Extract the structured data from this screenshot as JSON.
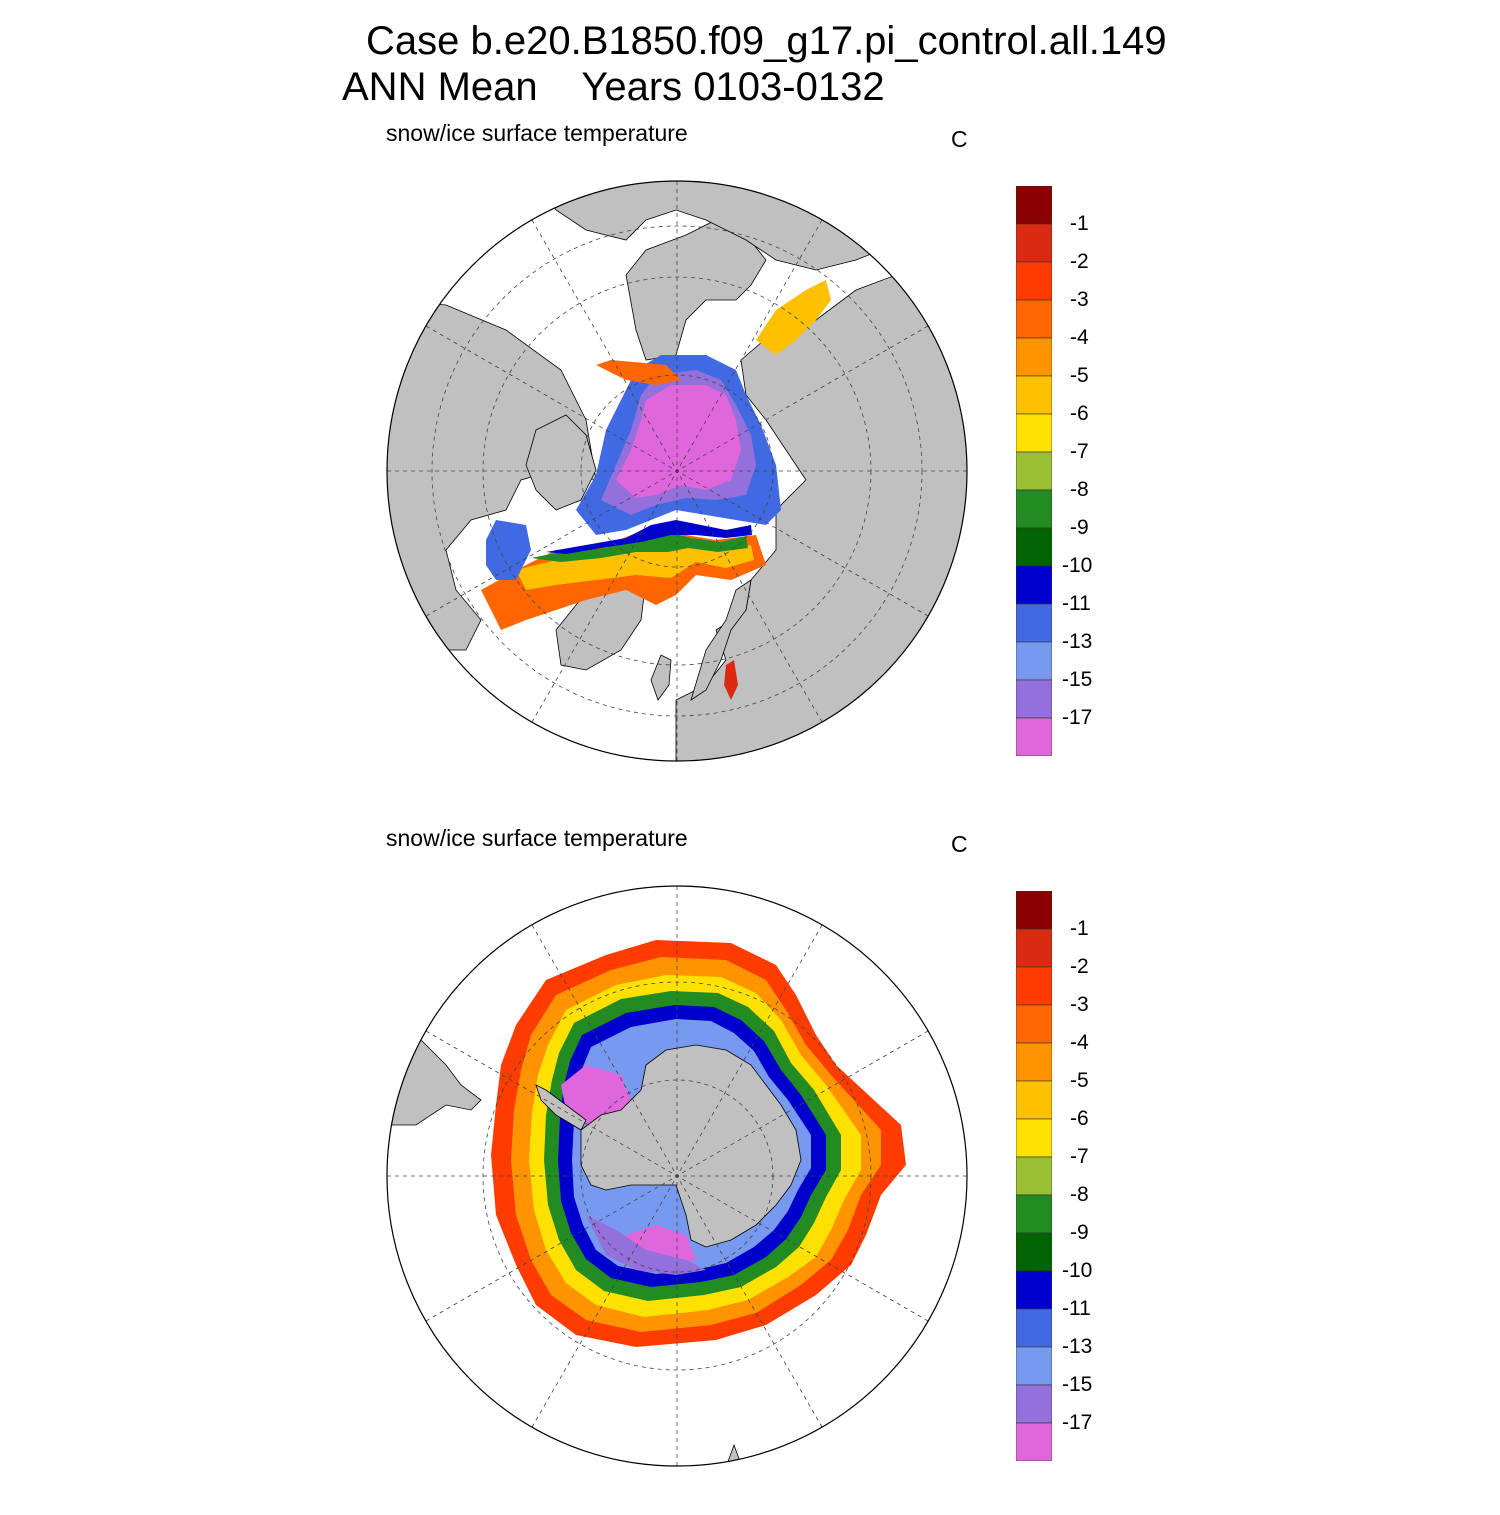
{
  "title": {
    "line1": "Case b.e20.B1850.f09_g17.pi_control.all.149",
    "line2": "ANN Mean    Years 0103-0132"
  },
  "panels": [
    {
      "id": "north",
      "hemisphere": "Northern Hemisphere",
      "variable": "snow/ice surface temperature",
      "units": "C"
    },
    {
      "id": "south",
      "hemisphere": "Southern Hemisphere",
      "variable": "snow/ice surface temperature",
      "units": "C"
    }
  ],
  "colorbar": {
    "labels": [
      "-1",
      "-2",
      "-3",
      "-4",
      "-5",
      "-6",
      "-7",
      "-8",
      "-9",
      "-10",
      "-11",
      "-13",
      "-15",
      "-17"
    ],
    "colors": [
      "#8B0000",
      "#DA2A12",
      "#FF3C00",
      "#FF6600",
      "#FF9400",
      "#FFC000",
      "#FFE100",
      "#99BF33",
      "#228B22",
      "#006400",
      "#0000CD",
      "#4169E1",
      "#7799F0",
      "#9370DB",
      "#E066DB"
    ]
  },
  "map_colors": {
    "land": "#C0C0C0",
    "ocean": "#FFFFFF",
    "grid": "#444444"
  }
}
